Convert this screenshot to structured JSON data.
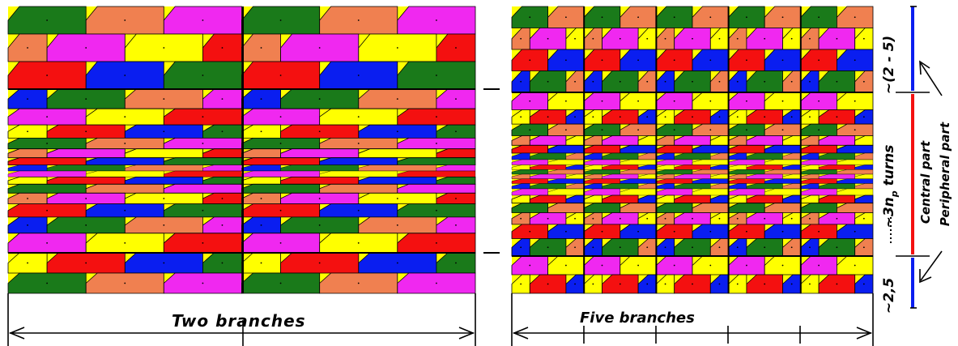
{
  "labels": {
    "left_width": "Two branches",
    "right_width": "Five branches",
    "top_height": "~(2 - 5)",
    "middle_height_prefix": "~3n",
    "middle_height_sub": "p",
    "middle_height_suffix": " turns",
    "bottom_height": "~2,5",
    "central_part": "Central part",
    "peripheral_part": "Peripheral part"
  },
  "diagram": {
    "left_branches": 2,
    "right_branches": 5,
    "palette": {
      "green": "#1a7a1a",
      "orange": "#f08050",
      "magenta": "#f028f0",
      "yellow": "#ffff00",
      "red": "#f41010",
      "blue": "#0a1ef0",
      "dark_red": "#c00000"
    },
    "side_bar_colors": {
      "peripheral": "#0a1ef0",
      "central": "#f41010"
    }
  }
}
